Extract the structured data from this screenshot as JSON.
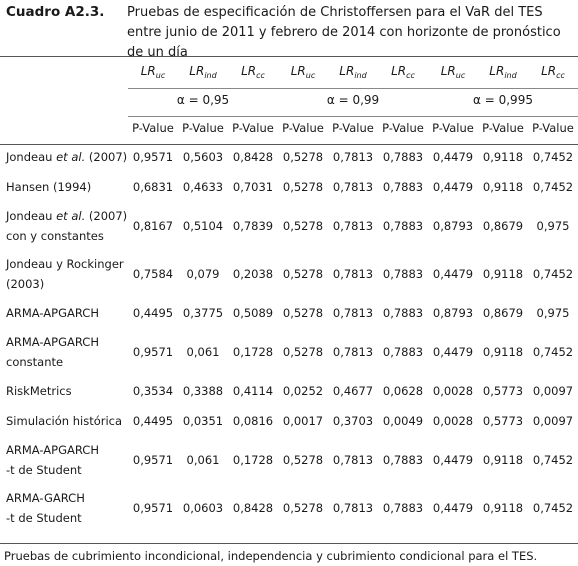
{
  "label": "Cuadro A2.3.",
  "caption": "Pruebas de especificación de Christoffersen para el VaR del TES entre junio de 2011 y febrero de 2014 con horizonte de pronóstico de un día",
  "headers": [
    {
      "main": "LR",
      "sub": "uc"
    },
    {
      "main": "LR",
      "sub": "ind"
    },
    {
      "main": "LR",
      "sub": "cc"
    },
    {
      "main": "LR",
      "sub": "uc"
    },
    {
      "main": "LR",
      "sub": "ind"
    },
    {
      "main": "LR",
      "sub": "cc"
    },
    {
      "main": "LR",
      "sub": "uc"
    },
    {
      "main": "LR",
      "sub": "ind"
    },
    {
      "main": "LR",
      "sub": "cc"
    }
  ],
  "alphas": [
    "α = 0,95",
    "α = 0,99",
    "α = 0,995"
  ],
  "pvalue_label": "P-Value",
  "rows": [
    {
      "name": [
        "Jondeau ",
        "et al.",
        " (2007)"
      ],
      "values": [
        "0,9571",
        "0,5603",
        "0,8428",
        "0,5278",
        "0,7813",
        "0,7883",
        "0,4479",
        "0,9118",
        "0,7452"
      ]
    },
    {
      "name": [
        "Hansen (1994)"
      ],
      "values": [
        "0,6831",
        "0,4633",
        "0,7031",
        "0,5278",
        "0,7813",
        "0,7883",
        "0,4479",
        "0,9118",
        "0,7452"
      ]
    },
    {
      "name": [
        "Jondeau ",
        "et al.",
        " (2007)",
        "con y constantes"
      ],
      "values": [
        "0,8167",
        "0,5104",
        "0,7839",
        "0,5278",
        "0,7813",
        "0,7883",
        "0,8793",
        "0,8679",
        "0,975"
      ]
    },
    {
      "name": [
        "Jondeau y Rockinger",
        "(2003)"
      ],
      "values": [
        "0,7584",
        "0,079",
        "0,2038",
        "0,5278",
        "0,7813",
        "0,7883",
        "0,4479",
        "0,9118",
        "0,7452"
      ]
    },
    {
      "name": [
        "ARMA-APGARCH"
      ],
      "values": [
        "0,4495",
        "0,3775",
        "0,5089",
        "0,5278",
        "0,7813",
        "0,7883",
        "0,8793",
        "0,8679",
        "0,975"
      ]
    },
    {
      "name": [
        "ARMA-APGARCH",
        "constante"
      ],
      "values": [
        "0,9571",
        "0,061",
        "0,1728",
        "0,5278",
        "0,7813",
        "0,7883",
        "0,4479",
        "0,9118",
        "0,7452"
      ]
    },
    {
      "name": [
        "RiskMetrics"
      ],
      "values": [
        "0,3534",
        "0,3388",
        "0,4114",
        "0,0252",
        "0,4677",
        "0,0628",
        "0,0028",
        "0,5773",
        "0,0097"
      ]
    },
    {
      "name": [
        "Simulación histórica"
      ],
      "values": [
        "0,4495",
        "0,0351",
        "0,0816",
        "0,0017",
        "0,3703",
        "0,0049",
        "0,0028",
        "0,5773",
        "0,0097"
      ]
    },
    {
      "name": [
        "ARMA-APGARCH",
        "-t de Student"
      ],
      "values": [
        "0,9571",
        "0,061",
        "0,1728",
        "0,5278",
        "0,7813",
        "0,7883",
        "0,4479",
        "0,9118",
        "0,7452"
      ]
    },
    {
      "name": [
        "ARMA-GARCH",
        "-t de Student"
      ],
      "values": [
        "0,9571",
        "0,0603",
        "0,8428",
        "0,5278",
        "0,7813",
        "0,7883",
        "0,4479",
        "0,9118",
        "0,7452"
      ]
    }
  ],
  "footnote": "Pruebas de cubrimiento incondicional, independencia y cubrimiento condicional para el TES."
}
